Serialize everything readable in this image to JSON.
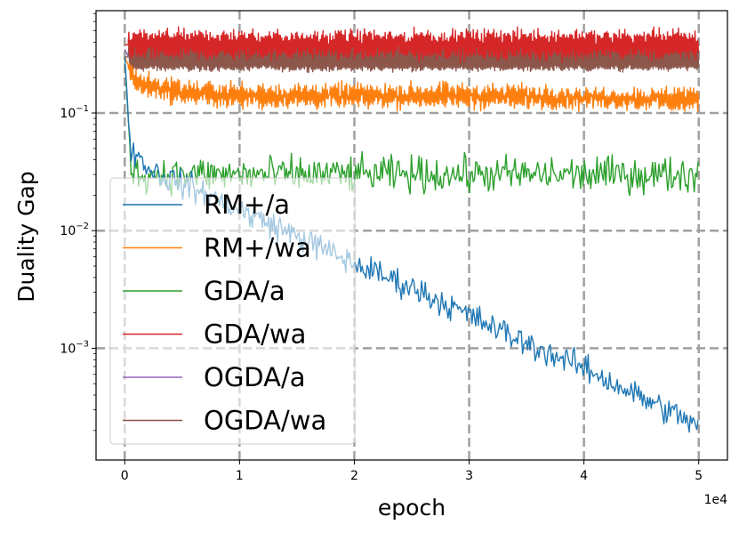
{
  "chart_data": {
    "type": "line",
    "title": "",
    "xlabel": "epoch",
    "ylabel": "Duality Gap",
    "x_offset_label": "1e4",
    "xlim": [
      -2500,
      52500
    ],
    "ylim_log10": [
      -3.95,
      -0.13
    ],
    "yscale": "log",
    "grid": true,
    "legend_position": "center-left",
    "x_ticks": [
      0,
      10000,
      20000,
      30000,
      40000,
      50000
    ],
    "x_tick_labels": [
      "0",
      "1",
      "2",
      "3",
      "4",
      "5"
    ],
    "y_ticks": [
      0.001,
      0.01,
      0.1
    ],
    "y_tick_labels": [
      {
        "base": "10",
        "exp": "−3"
      },
      {
        "base": "10",
        "exp": "−2"
      },
      {
        "base": "10",
        "exp": "−1"
      }
    ],
    "series": [
      {
        "name": "RM+/a",
        "color": "#1f77b4",
        "x": [
          0,
          500,
          1000,
          2000,
          3000,
          5000,
          10000,
          15000,
          20000,
          25000,
          30000,
          35000,
          40000,
          45000,
          50000
        ],
        "values": [
          0.3,
          0.05,
          0.045,
          0.035,
          0.03,
          0.025,
          0.015,
          0.009,
          0.0052,
          0.0033,
          0.0019,
          0.0011,
          0.00068,
          0.00038,
          0.00022
        ]
      },
      {
        "name": "RM+/wa",
        "color": "#ff7f0e",
        "x": [
          0,
          1000,
          5000,
          10000,
          20000,
          30000,
          40000,
          50000
        ],
        "values": [
          0.3,
          0.18,
          0.15,
          0.14,
          0.14,
          0.14,
          0.135,
          0.13
        ]
      },
      {
        "name": "GDA/a",
        "color": "#2ca02c",
        "x": [
          0,
          500,
          1000,
          5000,
          10000,
          20000,
          30000,
          40000,
          50000
        ],
        "values": [
          0.3,
          0.04,
          0.03,
          0.03,
          0.03,
          0.03,
          0.03,
          0.03,
          0.03
        ]
      },
      {
        "name": "GDA/wa",
        "color": "#d62728",
        "x": [
          0,
          10000,
          20000,
          30000,
          40000,
          50000
        ],
        "values": [
          0.38,
          0.38,
          0.38,
          0.38,
          0.38,
          0.38
        ]
      },
      {
        "name": "OGDA/a",
        "color": "#9467bd",
        "x": [
          0,
          300
        ],
        "values": [
          0.35,
          0.3
        ]
      },
      {
        "name": "OGDA/wa",
        "color": "#8c564b",
        "x": [
          0,
          10000,
          20000,
          30000,
          40000,
          50000
        ],
        "values": [
          0.3,
          0.3,
          0.3,
          0.3,
          0.3,
          0.3
        ]
      }
    ]
  }
}
